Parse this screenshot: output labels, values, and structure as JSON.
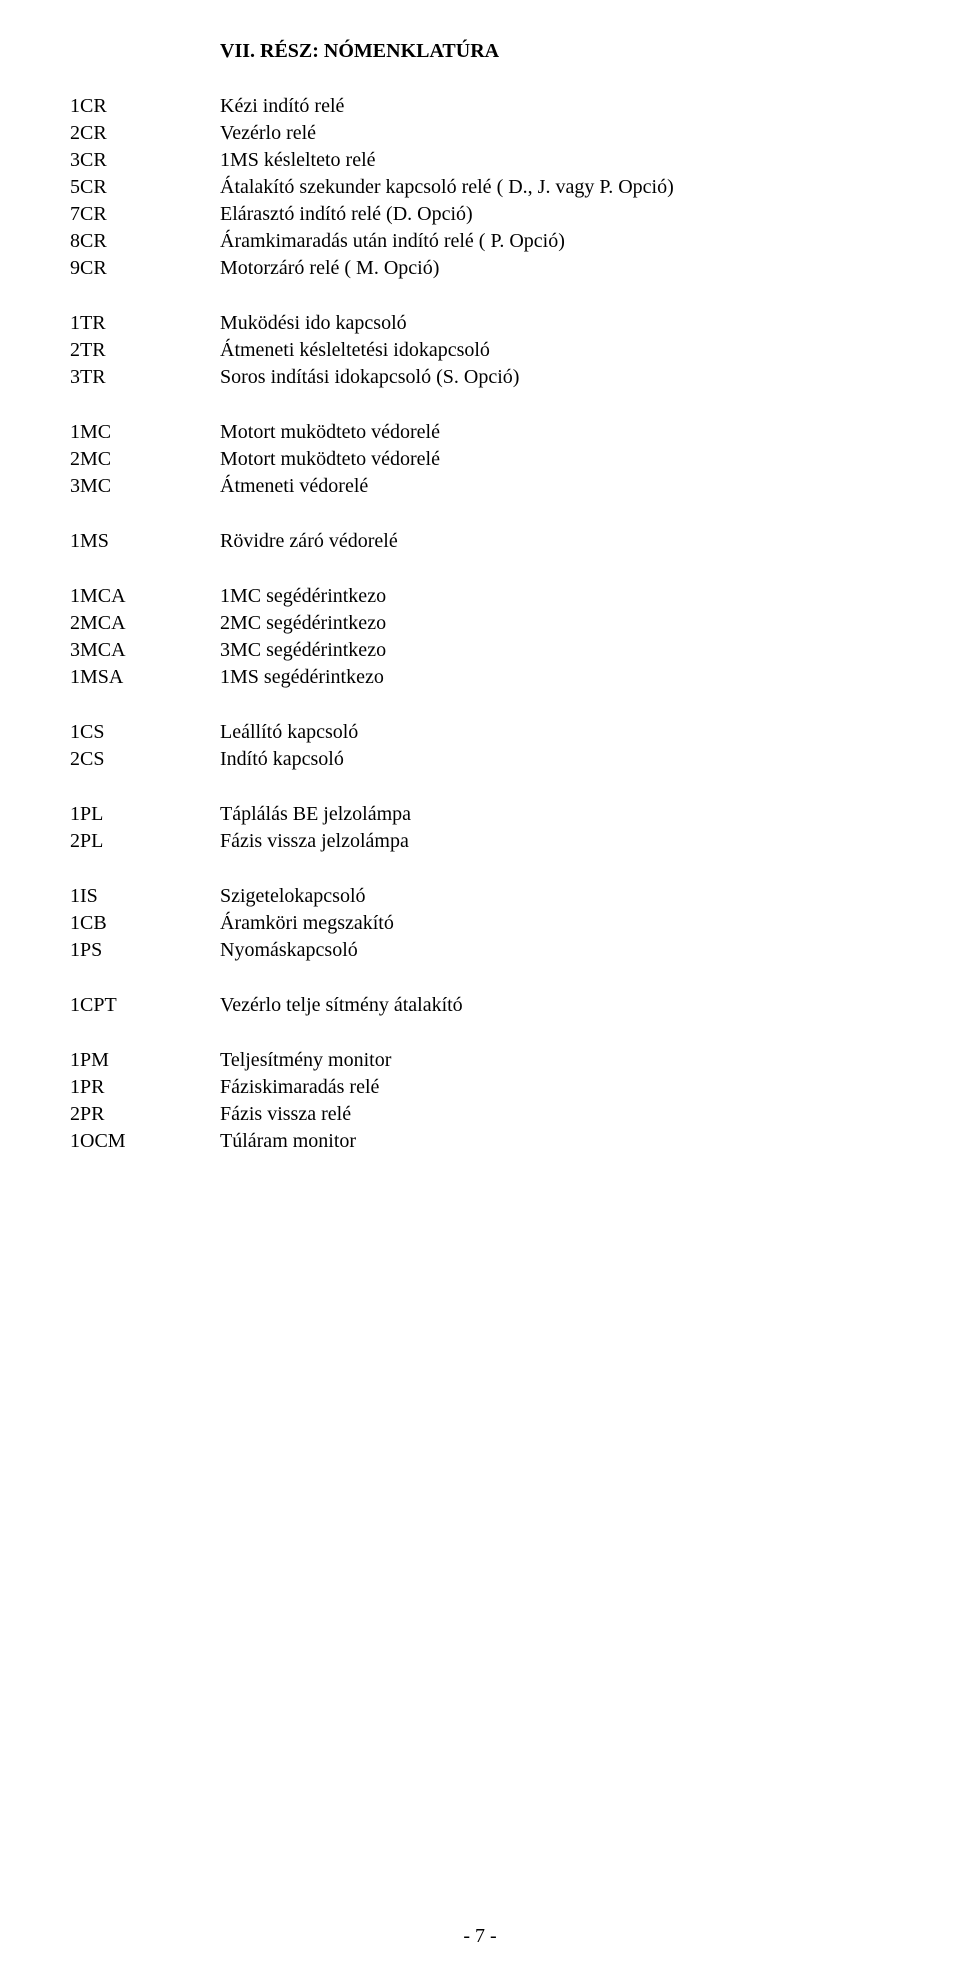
{
  "title": "VII. RÉSZ: NÓMENKLATÚRA",
  "blocks": [
    [
      {
        "code": "1CR",
        "desc": "Kézi indító relé"
      },
      {
        "code": "2CR",
        "desc": "Vezérlo relé"
      },
      {
        "code": "3CR",
        "desc": "1MS késlelteto relé"
      },
      {
        "code": "5CR",
        "desc": "Átalakító szekunder kapcsoló relé ( D., J. vagy P. Opció)"
      },
      {
        "code": "7CR",
        "desc": "Elárasztó indító relé (D. Opció)"
      },
      {
        "code": "8CR",
        "desc": "Áramkimaradás után indító relé ( P. Opció)"
      },
      {
        "code": "9CR",
        "desc": "Motorzáró relé ( M. Opció)"
      }
    ],
    [
      {
        "code": "1TR",
        "desc": "Muködési ido kapcsoló"
      },
      {
        "code": "2TR",
        "desc": "Átmeneti késleltetési idokapcsoló"
      },
      {
        "code": "3TR",
        "desc": "Soros indítási idokapcsoló (S. Opció)"
      }
    ],
    [
      {
        "code": "1MC",
        "desc": "Motort muködteto védorelé"
      },
      {
        "code": "2MC",
        "desc": "Motort muködteto védorelé"
      },
      {
        "code": "3MC",
        "desc": "Átmeneti védorelé"
      }
    ],
    [
      {
        "code": "1MS",
        "desc": "Rövidre záró védorelé"
      }
    ],
    [
      {
        "code": "1MCA",
        "desc": "1MC segédérintkezo"
      },
      {
        "code": "2MCA",
        "desc": "2MC segédérintkezo"
      },
      {
        "code": "3MCA",
        "desc": "3MC segédérintkezo"
      },
      {
        "code": "1MSA",
        "desc": "1MS segédérintkezo"
      }
    ],
    [
      {
        "code": "1CS",
        "desc": "Leállító kapcsoló"
      },
      {
        "code": "2CS",
        "desc": "Indító kapcsoló"
      }
    ],
    [
      {
        "code": "1PL",
        "desc": "Táplálás BE jelzolámpa"
      },
      {
        "code": "2PL",
        "desc": "Fázis vissza jelzolámpa"
      }
    ],
    [
      {
        "code": "1IS",
        "desc": "Szigetelokapcsoló"
      },
      {
        "code": "1CB",
        "desc": "Áramköri megszakító"
      },
      {
        "code": "1PS",
        "desc": "Nyomáskapcsoló"
      }
    ],
    [
      {
        "code": "1CPT",
        "desc": "Vezérlo telje sítmény átalakító"
      }
    ],
    [
      {
        "code": "1PM",
        "desc": " Teljesítmény monitor"
      },
      {
        "code": "1PR",
        "desc": " Fáziskimaradás relé"
      },
      {
        "code": "2PR",
        "desc": " Fázis vissza relé"
      },
      {
        "code": "1OCM",
        "desc": " Túláram monitor"
      }
    ]
  ],
  "page_number": "- 7 -"
}
